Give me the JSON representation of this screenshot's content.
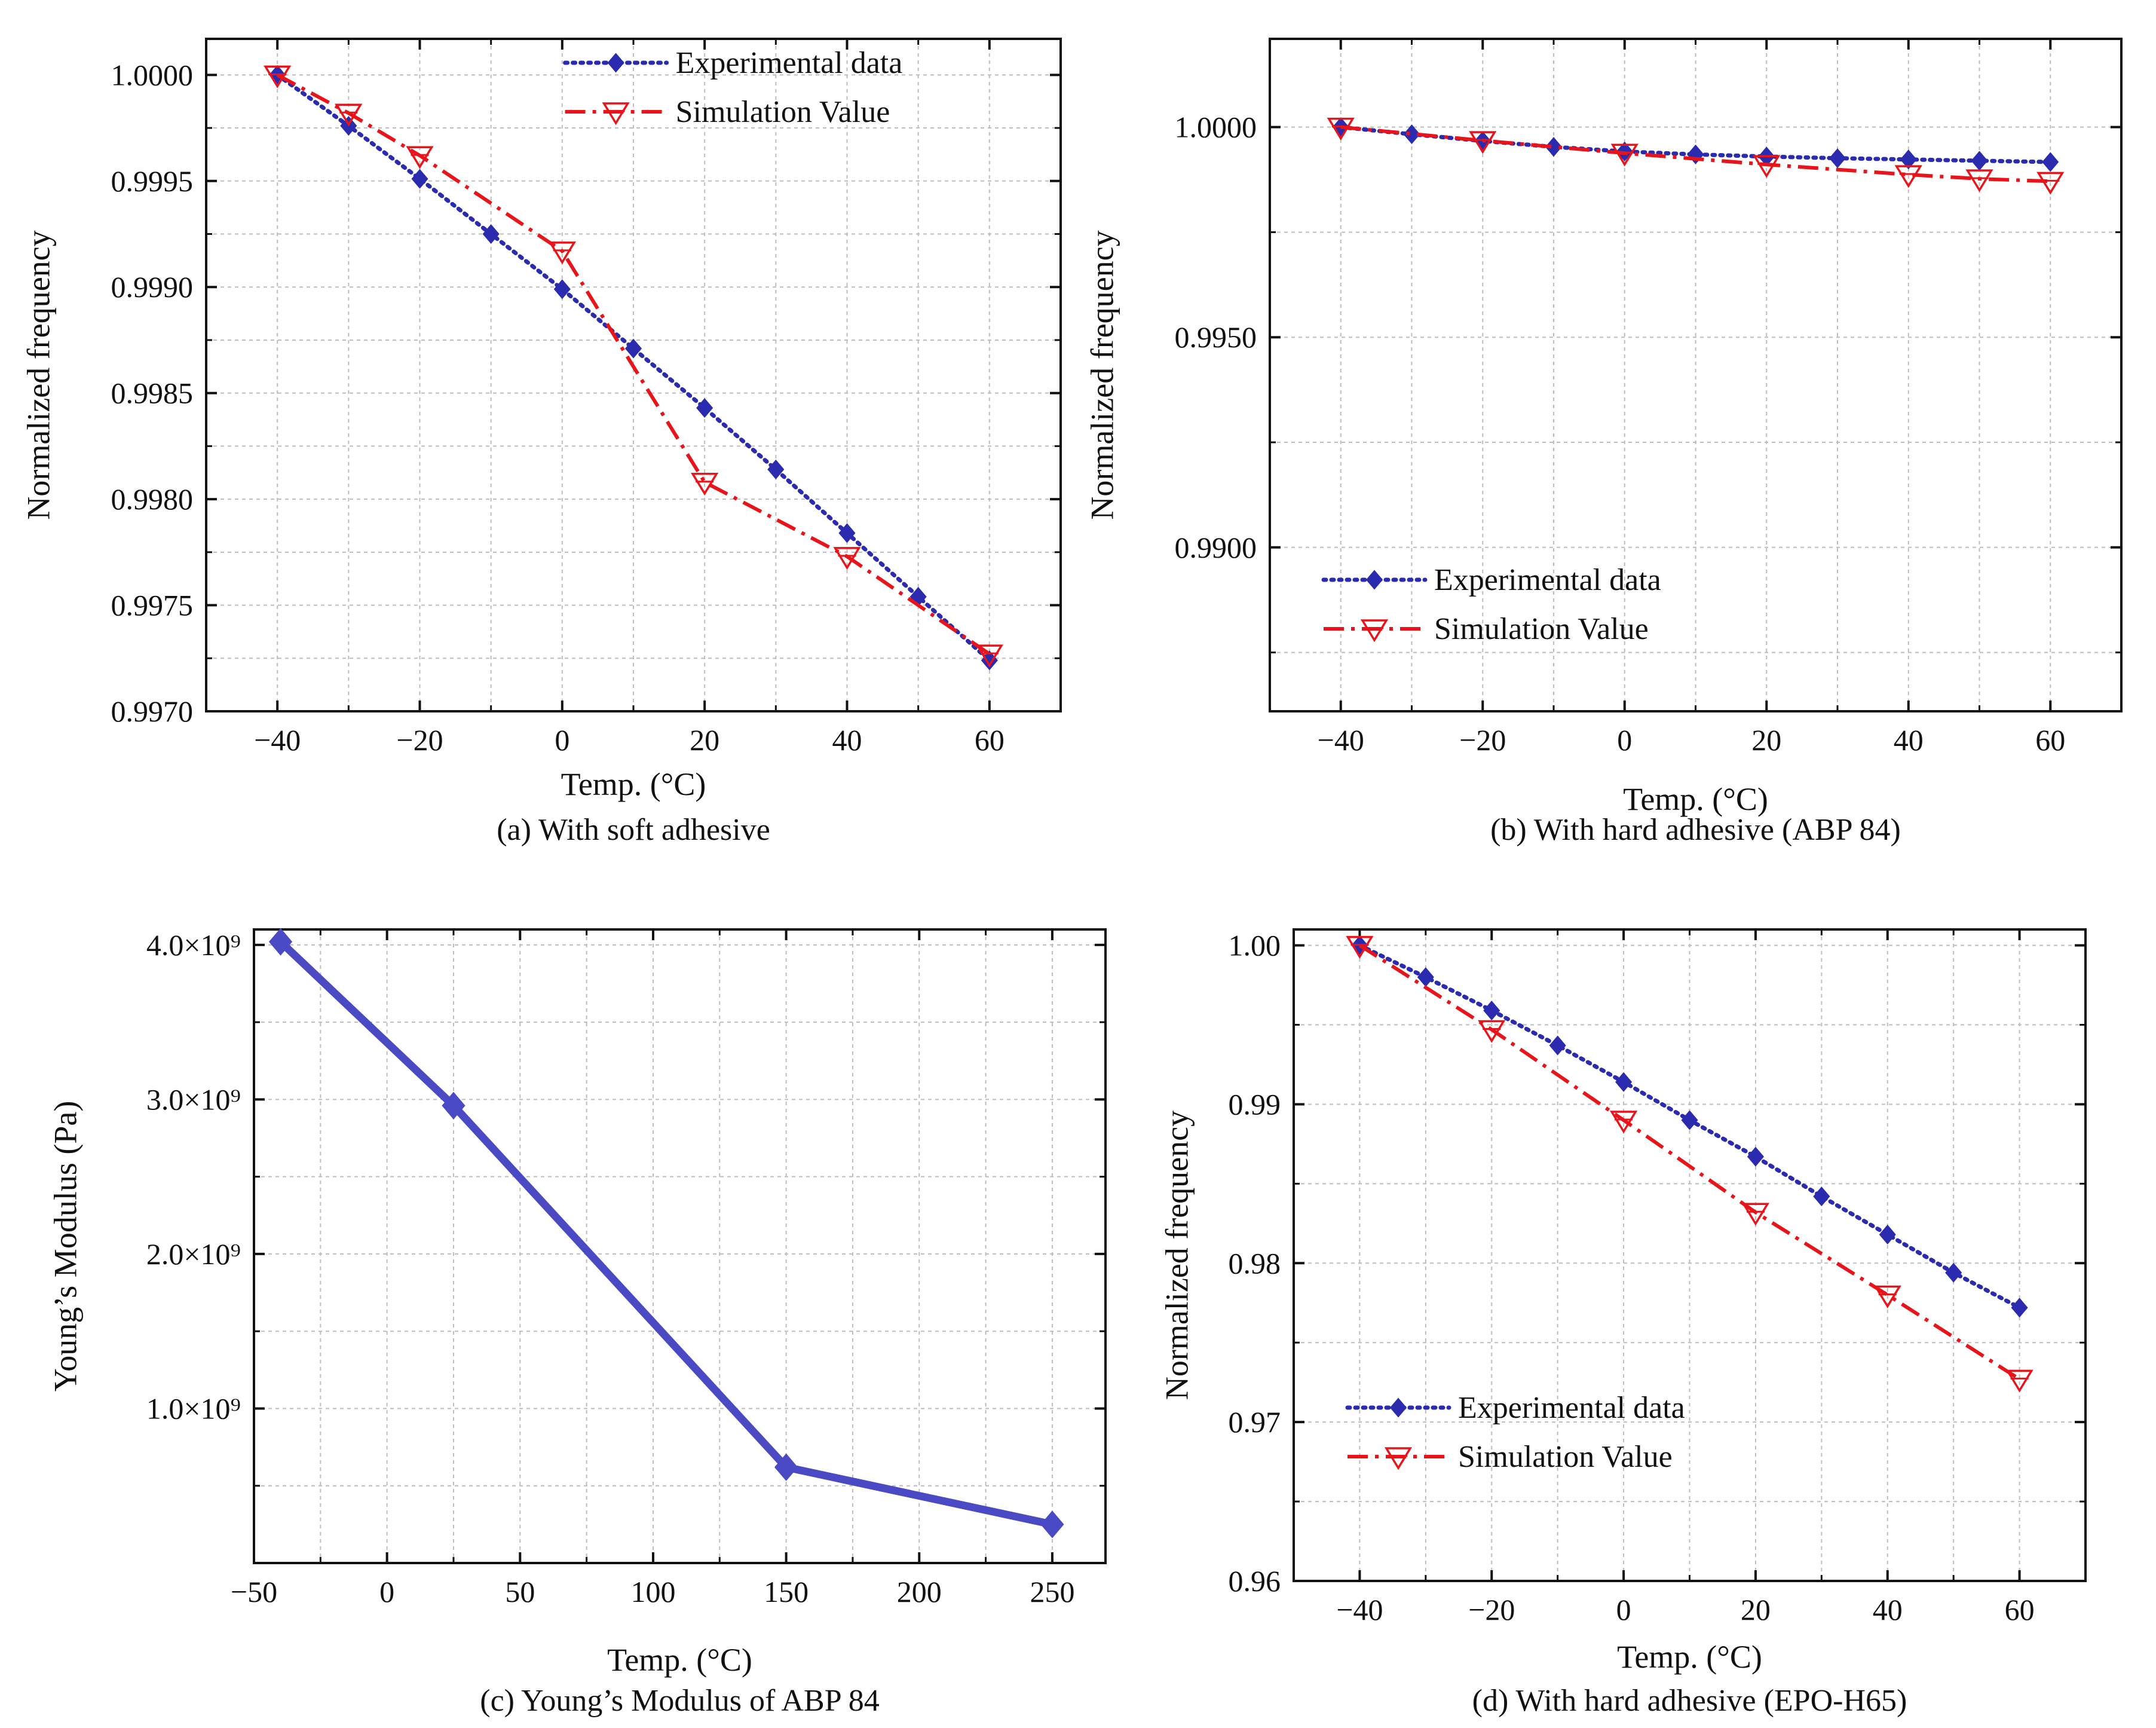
{
  "chart_data": [
    {
      "id": "a",
      "type": "line",
      "caption": "(a) With soft adhesive",
      "xlabel": "Temp. (°C)",
      "ylabel": "Normalized frequency",
      "xlim": [
        -50,
        70
      ],
      "ylim": [
        0.997,
        1.00017
      ],
      "xticks": [
        -40,
        -20,
        0,
        20,
        40,
        60
      ],
      "xtick_labels": [
        "−40",
        "−20",
        "0",
        "20",
        "40",
        "60"
      ],
      "yticks": [
        0.997,
        0.9975,
        0.998,
        0.9985,
        0.999,
        0.9995,
        1.0
      ],
      "ytick_labels": [
        "0.9970",
        "0.9975",
        "0.9980",
        "0.9985",
        "0.9990",
        "0.9995",
        "1.0000"
      ],
      "legend_position": "top-right",
      "series": [
        {
          "name": "Experimental data",
          "style": "dotted",
          "color": "#2b2bb0",
          "marker": "diamond",
          "x": [
            -40,
            -30,
            -20,
            -10,
            0,
            10,
            20,
            30,
            40,
            50,
            60
          ],
          "y": [
            1.0,
            0.99976,
            0.99951,
            0.99925,
            0.99899,
            0.99871,
            0.99843,
            0.99814,
            0.99784,
            0.99754,
            0.99724
          ]
        },
        {
          "name": "Simulation Value",
          "style": "dashdot",
          "color": "#e8141a",
          "marker": "triangle-down-open",
          "x": [
            -40,
            -30,
            -20,
            0,
            20,
            40,
            60
          ],
          "y": [
            1.0,
            0.99982,
            0.99962,
            0.99917,
            0.99808,
            0.99773,
            0.99727
          ]
        }
      ]
    },
    {
      "id": "b",
      "type": "line",
      "caption": "(b) With hard adhesive (ABP 84)",
      "xlabel": "Temp. (°C)",
      "ylabel": "Normalized frequency",
      "xlim": [
        -50,
        70
      ],
      "ylim": [
        0.9861,
        1.0021
      ],
      "xticks": [
        -40,
        -20,
        0,
        20,
        40,
        60
      ],
      "xtick_labels": [
        "−40",
        "−20",
        "0",
        "20",
        "40",
        "60"
      ],
      "yticks": [
        0.99,
        0.995,
        1.0
      ],
      "ytick_labels": [
        "0.9900",
        "0.9950",
        "1.0000"
      ],
      "legend_position": "bottom-left",
      "series": [
        {
          "name": "Experimental data",
          "style": "dotted",
          "color": "#2b2bb0",
          "marker": "diamond",
          "x": [
            -40,
            -30,
            -20,
            -10,
            0,
            10,
            20,
            30,
            40,
            50,
            60
          ],
          "y": [
            1.0,
            0.99983,
            0.99967,
            0.99953,
            0.99942,
            0.99935,
            0.9993,
            0.99926,
            0.99923,
            0.9992,
            0.99917
          ]
        },
        {
          "name": "Simulation Value",
          "style": "dashdot",
          "color": "#e8141a",
          "marker": "triangle-down-open",
          "x": [
            -40,
            -20,
            0,
            20,
            40,
            50,
            60
          ],
          "y": [
            1.0,
            0.99968,
            0.99938,
            0.99911,
            0.99887,
            0.99877,
            0.99871
          ]
        }
      ]
    },
    {
      "id": "c",
      "type": "line",
      "caption": "(c) Young’s Modulus of ABP 84",
      "xlabel": "Temp. (°C)",
      "ylabel": "Young’s Modulus (Pa)",
      "xlim": [
        -50,
        270
      ],
      "ylim": [
        0.0,
        4.1
      ],
      "xticks": [
        -50,
        0,
        50,
        100,
        150,
        200,
        250
      ],
      "xtick_labels": [
        "−50",
        "0",
        "50",
        "100",
        "150",
        "200",
        "250"
      ],
      "yticks": [
        1.0,
        2.0,
        3.0,
        4.0
      ],
      "ytick_labels": [
        "1.0×10⁹",
        "2.0×10⁹",
        "3.0×10⁹",
        "4.0×10⁹"
      ],
      "series": [
        {
          "name": "Young's Modulus",
          "style": "solid",
          "color": "#4a4ac4",
          "marker": "diamond",
          "x": [
            -40,
            25,
            150,
            250
          ],
          "y": [
            4.02,
            2.96,
            0.62,
            0.25
          ]
        }
      ]
    },
    {
      "id": "d",
      "type": "line",
      "caption": "(d) With hard adhesive (EPO-H65)",
      "xlabel": "Temp. (°C)",
      "ylabel": "Normalized frequency",
      "xlim": [
        -50,
        70
      ],
      "ylim": [
        0.96,
        1.001
      ],
      "xticks": [
        -40,
        -20,
        0,
        20,
        40,
        60
      ],
      "xtick_labels": [
        "−40",
        "−20",
        "0",
        "20",
        "40",
        "60"
      ],
      "yticks": [
        0.96,
        0.97,
        0.98,
        0.99,
        1.0
      ],
      "ytick_labels": [
        "0.96",
        "0.97",
        "0.98",
        "0.99",
        "1.00"
      ],
      "legend_position": "bottom-left",
      "series": [
        {
          "name": "Experimental data",
          "style": "dotted",
          "color": "#2b2bb0",
          "marker": "diamond",
          "x": [
            -40,
            -30,
            -20,
            -10,
            0,
            10,
            20,
            30,
            40,
            50,
            60
          ],
          "y": [
            1.0,
            0.998,
            0.9959,
            0.9937,
            0.9914,
            0.989,
            0.9867,
            0.9842,
            0.9818,
            0.9794,
            0.9772
          ]
        },
        {
          "name": "Simulation Value",
          "style": "dashdot",
          "color": "#e8141a",
          "marker": "triangle-down-open",
          "x": [
            -40,
            -20,
            0,
            20,
            40,
            60
          ],
          "y": [
            1.0,
            0.9947,
            0.989,
            0.9832,
            0.978,
            0.9727
          ]
        }
      ]
    }
  ]
}
